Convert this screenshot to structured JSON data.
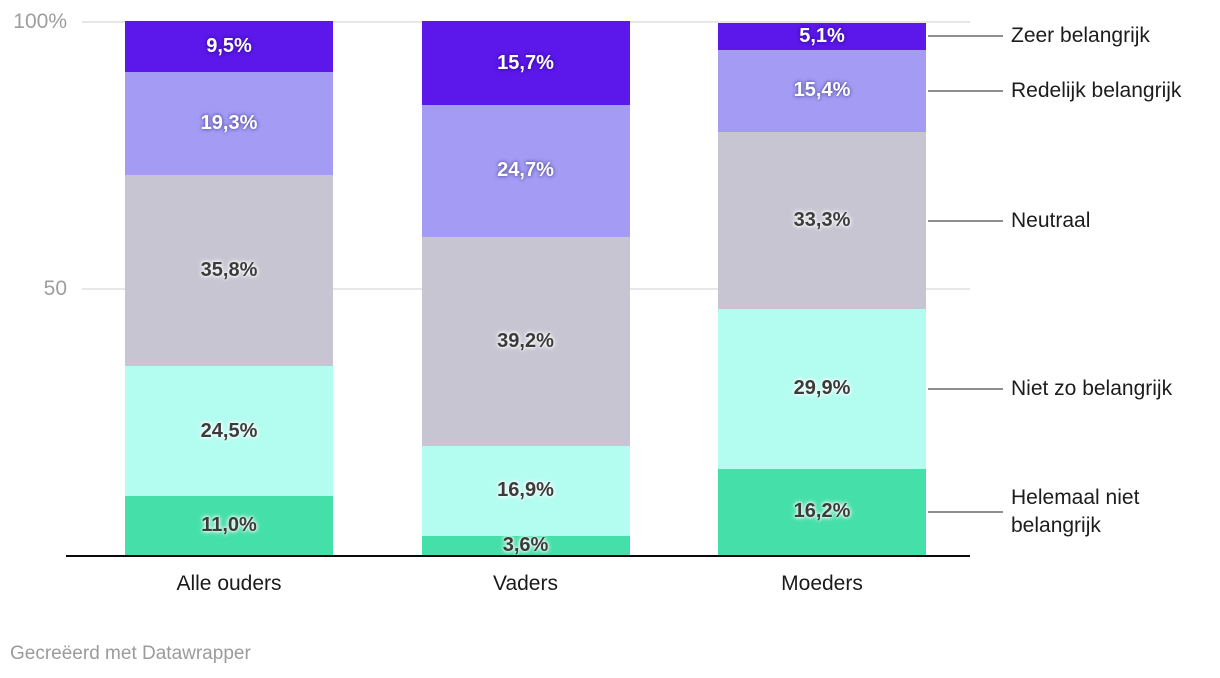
{
  "chart_data": {
    "type": "bar",
    "variant": "stacked-column-100",
    "unit": "%",
    "title": "",
    "categories": [
      "Alle ouders",
      "Vaders",
      "Moeders"
    ],
    "series": [
      {
        "name": "Helemaal niet belangrijk",
        "color": "#45dfa9",
        "text": "dark",
        "values": [
          11.0,
          3.6,
          16.2
        ],
        "labels": [
          "11,0%",
          "3,6%",
          "16,2%"
        ]
      },
      {
        "name": "Niet zo belangrijk",
        "color": "#b3fcf0",
        "text": "dark",
        "values": [
          24.5,
          16.9,
          29.9
        ],
        "labels": [
          "24,5%",
          "16,9%",
          "29,9%"
        ]
      },
      {
        "name": "Neutraal",
        "color": "#c7c5d2",
        "text": "dark",
        "values": [
          35.8,
          39.2,
          33.3
        ],
        "labels": [
          "35,8%",
          "39,2%",
          "33,3%"
        ]
      },
      {
        "name": "Redelijk belangrijk",
        "color": "#a39bf4",
        "text": "light",
        "values": [
          19.3,
          24.7,
          15.4
        ],
        "labels": [
          "19,3%",
          "24,7%",
          "15,4%"
        ]
      },
      {
        "name": "Zeer belangrijk",
        "color": "#5c17ea",
        "text": "light",
        "values": [
          9.5,
          15.7,
          5.1
        ],
        "labels": [
          "9,5%",
          "15,7%",
          "5,1%"
        ]
      }
    ],
    "y_axis": {
      "min": 0,
      "max": 100,
      "ticks": [
        {
          "value": 100,
          "label": "100%"
        },
        {
          "value": 50,
          "label": "50"
        }
      ]
    },
    "legend": {
      "position": "right",
      "entries": [
        "Zeer belangrijk",
        "Redelijk belangrijk",
        "Neutraal",
        "Niet zo belangrijk",
        "Helemaal niet belangrijk"
      ]
    },
    "grid": true,
    "value_label_decimal_separator": ","
  },
  "footer": {
    "credit": "Gecreëerd met Datawrapper"
  },
  "colors": {
    "axis_text": "#9e9e9e",
    "gridline": "#e7e7ea",
    "baseline": "#0a0a0a",
    "connector": "#8e8e8e",
    "label_dark": "#3b3b3b",
    "label_light": "#ffffff",
    "category_text": "#1a1a1a",
    "legend_text": "#1c1c1c",
    "credit_text": "#9b9b9b"
  }
}
